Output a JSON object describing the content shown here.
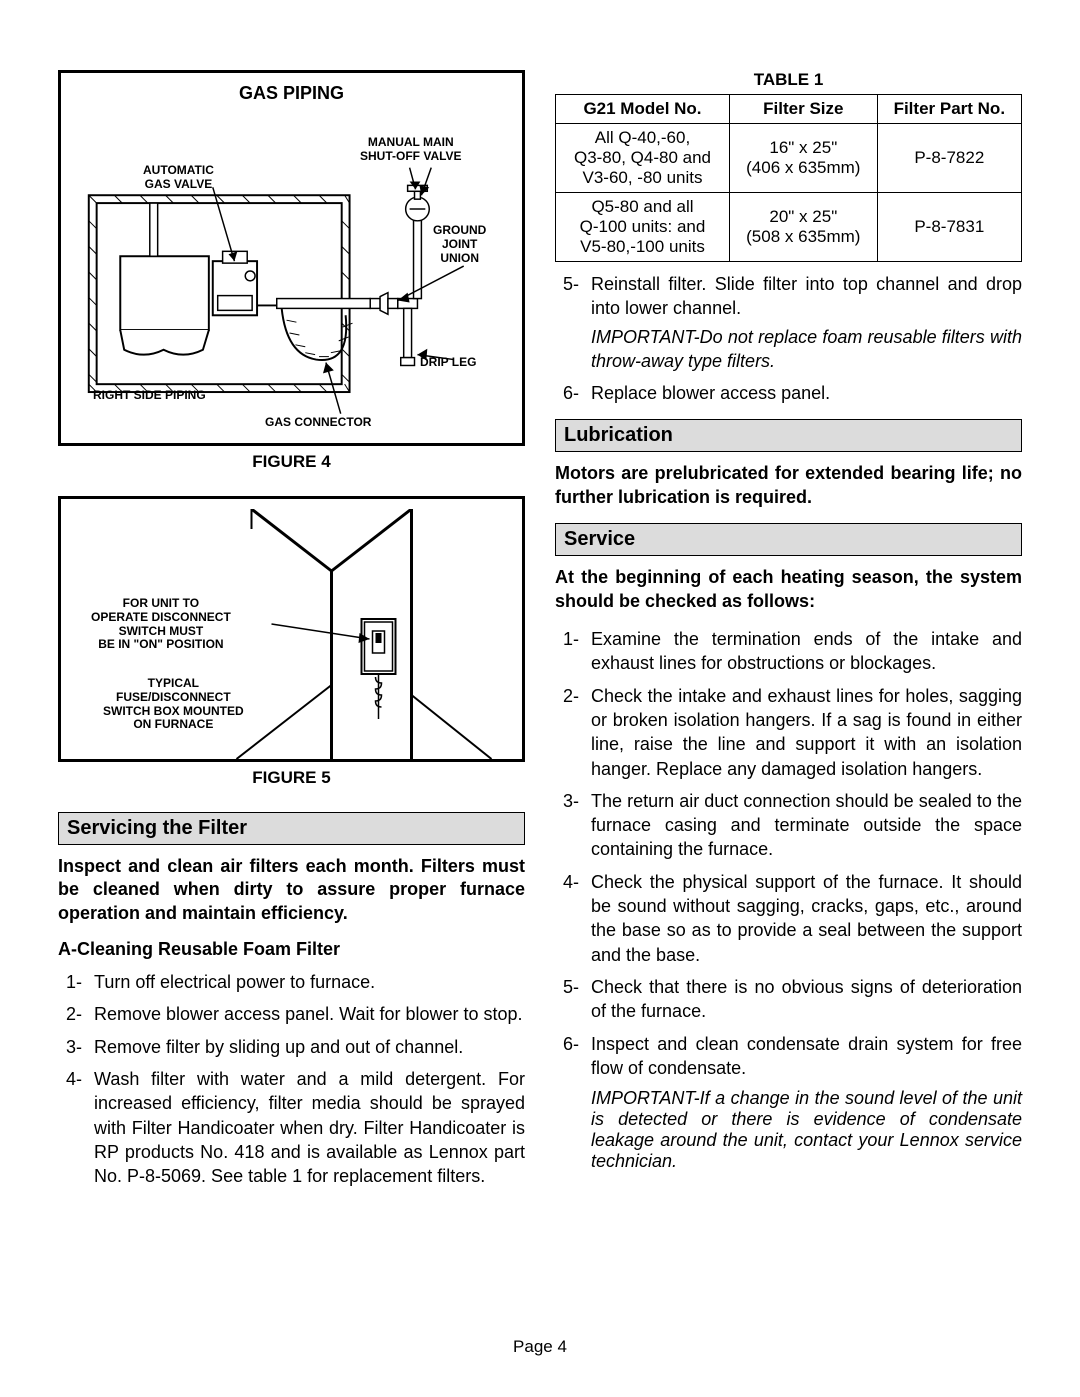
{
  "figure4": {
    "title": "GAS PIPING",
    "caption": "FIGURE 4",
    "labels": {
      "manual": "MANUAL MAIN\nSHUT-OFF VALVE",
      "auto": "AUTOMATIC\nGAS VALVE",
      "ground": "GROUND\nJOINT\nUNION",
      "right": "RIGHT SIDE PIPING",
      "drip": "DRIP LEG",
      "connector": "GAS CONNECTOR"
    }
  },
  "figure5": {
    "caption": "FIGURE 5",
    "labels": {
      "operate": "FOR UNIT TO\nOPERATE DISCONNECT\nSWITCH MUST\nBE IN \"ON\" POSITION",
      "typical": "TYPICAL\nFUSE/DISCONNECT\nSWITCH BOX MOUNTED\nON FURNACE"
    }
  },
  "filter_section": {
    "header": "Servicing the Filter",
    "intro": "Inspect and clean air filters each month. Filters must be cleaned when dirty to assure proper furnace operation and maintain efficiency.",
    "subA": "A-Cleaning Reusable Foam Filter",
    "items": [
      "Turn off electrical power to furnace.",
      "Remove blower access panel. Wait for blower to stop.",
      "Remove filter by sliding up and out of channel.",
      "Wash filter with water and a mild detergent. For increased efficiency, filter media should be sprayed with Filter Handicoater when dry. Filter Handicoater is RP products No. 418 and is available as Lennox part No. P-8-5069. See table 1 for replacement filters."
    ]
  },
  "table1": {
    "caption": "TABLE 1",
    "headers": [
      "G21 Model No.",
      "Filter Size",
      "Filter Part No."
    ],
    "rows": [
      [
        "All Q-40,-60,\nQ3-80, Q4-80 and\nV3-60, -80 units",
        "16\" x 25\"\n(406 x 635mm)",
        "P-8-7822"
      ],
      [
        "Q5-80 and all\nQ-100 units: and\nV5-80,-100 units",
        "20\" x 25\"\n(508 x 635mm)",
        "P-8-7831"
      ]
    ]
  },
  "after_table": {
    "item5": "Reinstall filter. Slide filter into top channel and drop into lower channel.",
    "important5": "IMPORTANT-Do not replace foam reusable filters with throw-away type filters.",
    "item6": "Replace blower access panel."
  },
  "lubrication": {
    "header": "Lubrication",
    "text": "Motors are prelubricated for extended bearing life; no further lubrication is required."
  },
  "service": {
    "header": "Service",
    "intro": "At the beginning of each heating season, the system should be checked as follows:",
    "items": [
      "Examine the termination ends of the intake and exhaust lines for obstructions or blockages.",
      "Check the intake and exhaust lines for holes, sagging or broken isolation hangers. If a sag is found in either line, raise the line and support it with an isolation hanger. Replace any damaged isolation hangers.",
      "The return air duct connection should be sealed to the furnace casing and terminate outside the space containing the furnace.",
      "Check the physical support of the furnace. It should be sound without sagging, cracks, gaps, etc., around the base so as to provide a seal between the support and the base.",
      "Check that there is no obvious signs of deterioration of the furnace.",
      "Inspect and clean condensate drain system for free flow of condensate."
    ],
    "important": "IMPORTANT-If a change in the sound level of the unit is detected or there is evidence of condensate leakage around the unit, contact your Lennox service technician."
  },
  "page": "Page 4",
  "colors": {
    "section_bg": "#dcdcdc",
    "border": "#000000",
    "text": "#000000"
  }
}
